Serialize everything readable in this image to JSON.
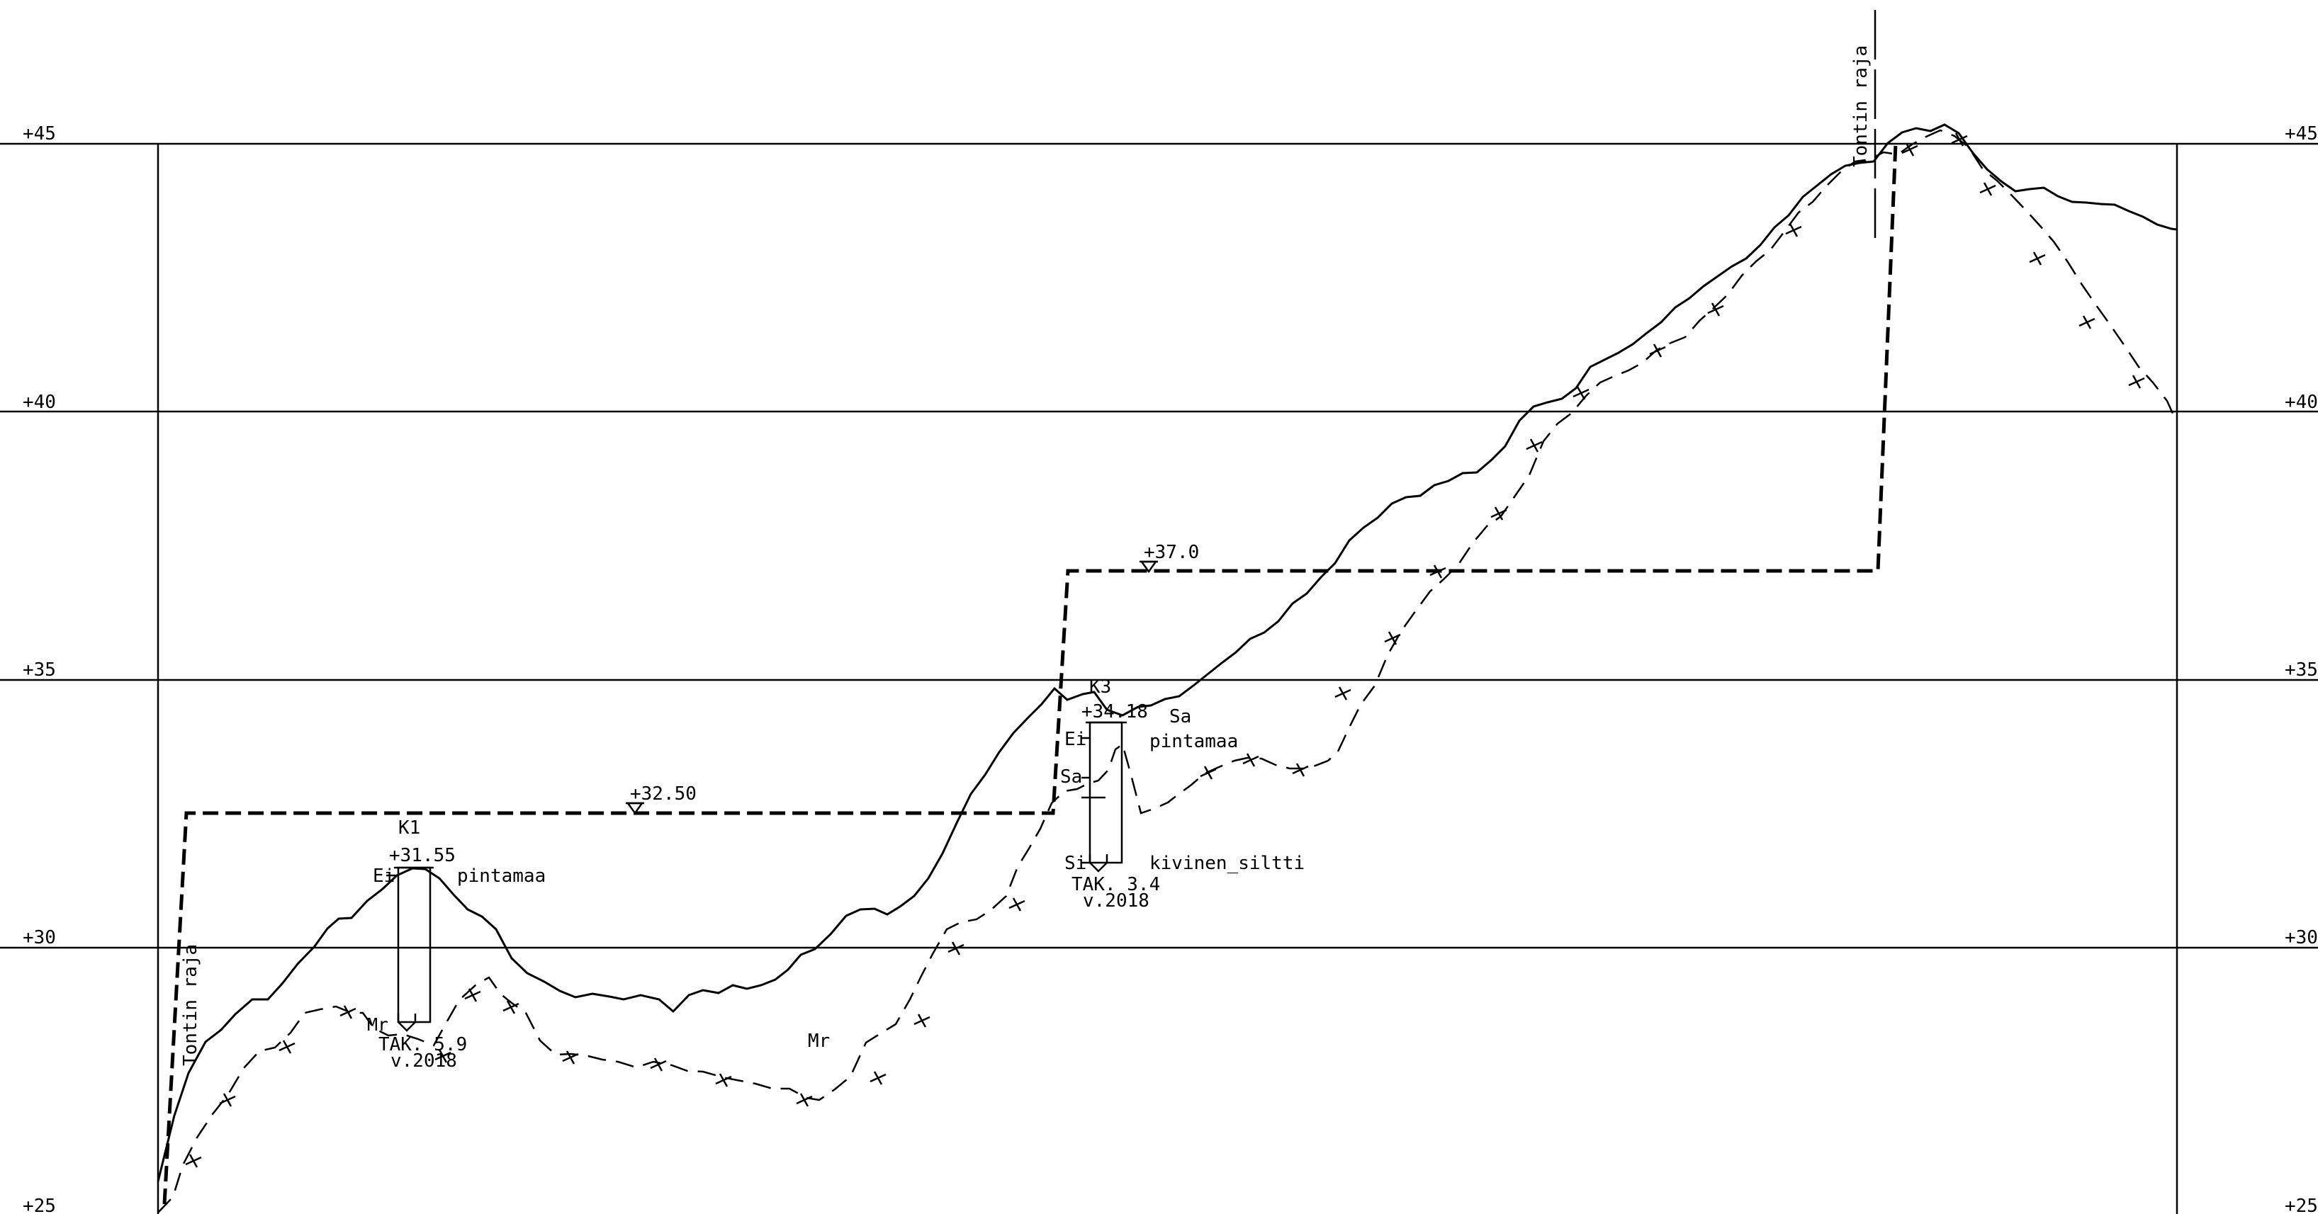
{
  "elevation_labels": {
    "e45": "+45",
    "e40": "+40",
    "e35": "+35",
    "e30": "+30",
    "e25": "+25"
  },
  "boundary": {
    "label": "Tontin raja"
  },
  "design_levels": {
    "lower": "+32.50",
    "upper": "+37.0"
  },
  "boreholes": [
    {
      "id": "K1",
      "top_level": "+31.55",
      "layers": [
        "Ei",
        "pintamaa",
        "Mr"
      ],
      "stop_code": "TAK. 5.9",
      "year": "v.2018"
    },
    {
      "id": "K3",
      "top_level": "+34.18",
      "layers": [
        "Ei",
        "pintamaa",
        "Sa",
        "Sa",
        "Si",
        "kivinen_siltti"
      ],
      "stop_code": "TAK. 3.4",
      "year": "v.2018"
    }
  ],
  "soil_labels": {
    "bedrock": "Mr"
  },
  "colors": {
    "ink": "#000000",
    "background": "#ffffff"
  }
}
